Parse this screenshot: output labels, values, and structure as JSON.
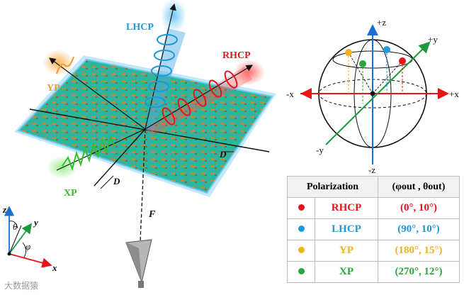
{
  "beams": {
    "lhcp": "LHCP",
    "rhcp": "RHCP",
    "yp": "YP",
    "xp": "XP"
  },
  "metasurface_labels": {
    "d_bottom": "D",
    "d_right": "D",
    "focal": "F"
  },
  "coordinate_frame": {
    "z": "z",
    "y": "y",
    "x": "x",
    "theta": "θ",
    "phi": "φ"
  },
  "sphere": {
    "plus_z": "+z",
    "minus_z": "-z",
    "plus_x": "+x",
    "minus_x": "-x",
    "plus_y": "+y",
    "minus_y": "-y"
  },
  "table": {
    "header_polarization": "Polarization",
    "header_angles": "(φout , θout)",
    "rows": [
      {
        "name": "RHCP",
        "angles": "(0°, 10°)",
        "color": "#e8141b"
      },
      {
        "name": "LHCP",
        "angles": "(90°, 10°)",
        "color": "#1f9ad9"
      },
      {
        "name": "YP",
        "angles": "(180°, 15°)",
        "color": "#f0b21d"
      },
      {
        "name": "XP",
        "angles": "(270°, 12°)",
        "color": "#27a83c"
      }
    ]
  },
  "colors": {
    "surface": "#2fb59f",
    "glow": "#7ecaf0",
    "rhcp": "#e8141b",
    "lhcp": "#1f9ad9",
    "yp": "#f39a2d",
    "xp": "#2fc02a",
    "axis_red": "#e8141b",
    "axis_green": "#1a9a3c",
    "axis_blue": "#1a6fd0"
  },
  "watermark": "大数据猿"
}
